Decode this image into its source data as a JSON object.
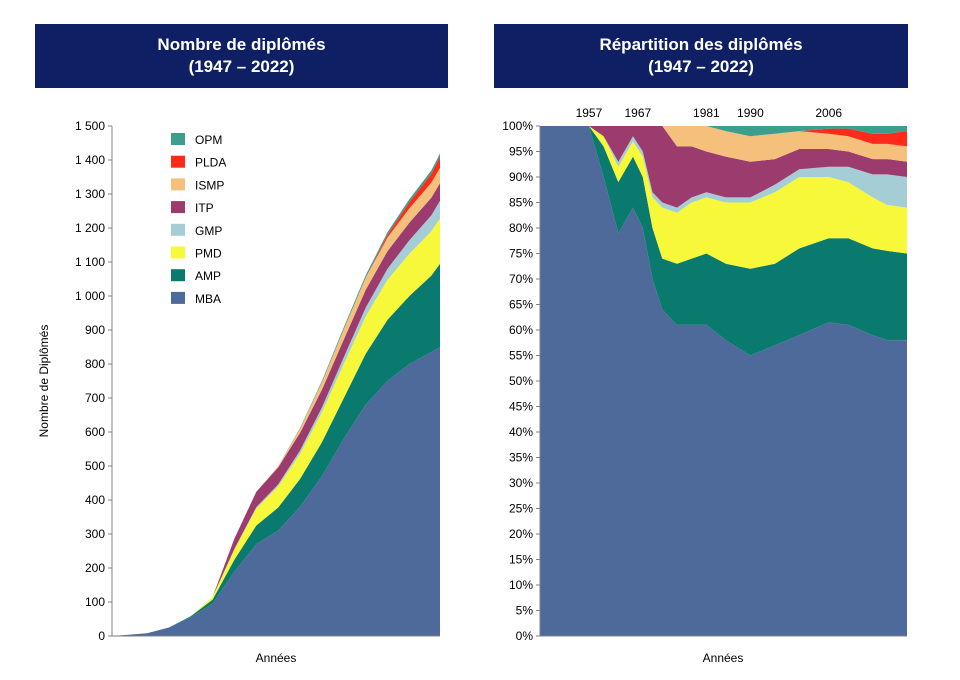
{
  "left_panel": {
    "title_line1": "Nombre de diplômés",
    "title_line2": "(1947 – 2022)"
  },
  "right_panel": {
    "title_line1": "Répartition des diplômés",
    "title_line2": "(1947 – 2022)"
  },
  "chart_data": [
    {
      "type": "area",
      "stacked": true,
      "title": "Nombre de diplômés (1947 – 2022)",
      "xlabel": "Années",
      "ylabel": "Nombre de Diplômés",
      "ylim": [
        0,
        1500
      ],
      "yticks": [
        "0",
        "100",
        "200",
        "300",
        "400",
        "500",
        "600",
        "700",
        "800",
        "900",
        "1 000",
        "1 100",
        "1 200",
        "1 300",
        "1 400",
        "1 500"
      ],
      "legend_position": "top-left",
      "x": [
        1947,
        1955,
        1960,
        1965,
        1970,
        1975,
        1980,
        1985,
        1990,
        1995,
        2000,
        2005,
        2010,
        2015,
        2020,
        2022
      ],
      "series": [
        {
          "name": "MBA",
          "color": "#4d6a9a",
          "values": [
            0,
            8,
            25,
            55,
            95,
            190,
            270,
            310,
            380,
            470,
            580,
            680,
            750,
            800,
            835,
            850
          ]
        },
        {
          "name": "AMP",
          "color": "#0b7a6e",
          "values": [
            0,
            0,
            0,
            3,
            12,
            35,
            55,
            68,
            82,
            100,
            120,
            150,
            180,
            200,
            225,
            245
          ]
        },
        {
          "name": "PMD",
          "color": "#f8f83a",
          "values": [
            0,
            0,
            0,
            0,
            8,
            30,
            50,
            62,
            74,
            88,
            100,
            110,
            118,
            124,
            130,
            133
          ]
        },
        {
          "name": "GMP",
          "color": "#a5cdd5",
          "values": [
            0,
            0,
            0,
            0,
            0,
            2,
            4,
            6,
            10,
            14,
            20,
            26,
            32,
            40,
            47,
            52
          ]
        },
        {
          "name": "ITP",
          "color": "#9b3b6e",
          "values": [
            0,
            0,
            0,
            0,
            0,
            30,
            45,
            50,
            52,
            52,
            52,
            52,
            52,
            52,
            52,
            52
          ]
        },
        {
          "name": "ISMP",
          "color": "#f5c07c",
          "values": [
            0,
            0,
            0,
            0,
            0,
            0,
            0,
            3,
            12,
            22,
            30,
            36,
            40,
            42,
            44,
            45
          ]
        },
        {
          "name": "PLDA",
          "color": "#ff2a1a",
          "values": [
            0,
            0,
            0,
            0,
            0,
            0,
            0,
            0,
            0,
            0,
            0,
            0,
            8,
            18,
            26,
            32
          ]
        },
        {
          "name": "OPM",
          "color": "#3d9e8e",
          "values": [
            0,
            0,
            0,
            0,
            0,
            0,
            0,
            0,
            2,
            4,
            6,
            7,
            8,
            9,
            10,
            10
          ]
        }
      ]
    },
    {
      "type": "area",
      "stacked": true,
      "percent": true,
      "title": "Répartition des diplômés (1947 – 2022)",
      "xlabel": "Années",
      "ylim": [
        0,
        100
      ],
      "yticks": [
        "0%",
        "5%",
        "10%",
        "15%",
        "20%",
        "25%",
        "30%",
        "35%",
        "40%",
        "45%",
        "50%",
        "55%",
        "60%",
        "65%",
        "70%",
        "75%",
        "80%",
        "85%",
        "90%",
        "95%",
        "100%"
      ],
      "annotations": [
        {
          "label": "1957",
          "x": 1957
        },
        {
          "label": "1967",
          "x": 1967
        },
        {
          "label": "1981",
          "x": 1981
        },
        {
          "label": "1990",
          "x": 1990
        },
        {
          "label": "2006",
          "x": 2006
        }
      ],
      "x": [
        1947,
        1957,
        1960,
        1963,
        1966,
        1968,
        1970,
        1972,
        1975,
        1978,
        1981,
        1985,
        1990,
        1995,
        2000,
        2006,
        2010,
        2015,
        2018,
        2022
      ],
      "series": [
        {
          "name": "MBA",
          "color": "#4d6a9a",
          "values": [
            100,
            100,
            90,
            79,
            84,
            80,
            70,
            64,
            61,
            61,
            61,
            58,
            55,
            57,
            59,
            61.5,
            61,
            59,
            58,
            58
          ]
        },
        {
          "name": "AMP",
          "color": "#0b7a6e",
          "values": [
            0,
            0,
            6,
            10,
            10,
            10,
            10,
            10,
            12,
            13,
            14,
            15,
            17,
            16,
            17,
            16.5,
            17,
            17,
            17.5,
            17
          ]
        },
        {
          "name": "PMD",
          "color": "#f8f83a",
          "values": [
            0,
            0,
            2,
            3,
            3,
            4,
            6,
            10,
            10,
            11,
            11,
            12,
            13,
            14,
            14,
            12,
            11,
            10,
            9,
            9
          ]
        },
        {
          "name": "GMP",
          "color": "#a5cdd5",
          "values": [
            0,
            0,
            0,
            1,
            1,
            1,
            1,
            1,
            1,
            1,
            1,
            1,
            1,
            1.5,
            1.5,
            2,
            3,
            4.5,
            6,
            6
          ]
        },
        {
          "name": "ITP",
          "color": "#9b3b6e",
          "values": [
            0,
            0,
            2,
            7,
            2,
            5,
            13,
            15,
            12,
            10,
            8,
            8,
            7,
            5,
            4,
            3.5,
            3,
            3,
            3,
            3
          ]
        },
        {
          "name": "ISMP",
          "color": "#f5c07c",
          "values": [
            0,
            0,
            0,
            0,
            0,
            0,
            0,
            0,
            4,
            4,
            5,
            5,
            5,
            5,
            3.5,
            3,
            3,
            3,
            3,
            3
          ]
        },
        {
          "name": "PLDA",
          "color": "#ff2a1a",
          "values": [
            0,
            0,
            0,
            0,
            0,
            0,
            0,
            0,
            0,
            0,
            0,
            0,
            0,
            0,
            0,
            1,
            1.5,
            2,
            2,
            3
          ]
        },
        {
          "name": "OPM",
          "color": "#3d9e8e",
          "values": [
            0,
            0,
            0,
            0,
            0,
            0,
            0,
            0,
            0,
            0,
            0,
            1,
            2,
            1.5,
            1,
            0.5,
            0.5,
            1.5,
            1.5,
            1
          ]
        }
      ]
    }
  ]
}
